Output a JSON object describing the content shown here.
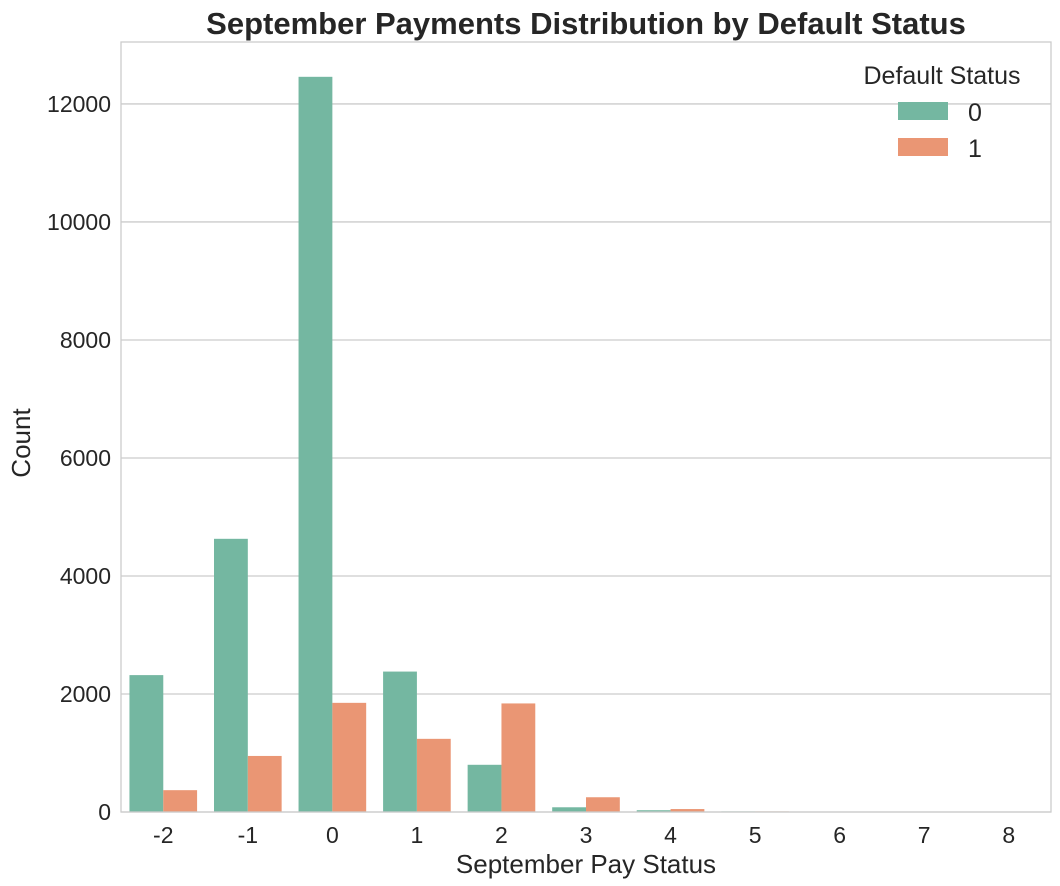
{
  "chart_data": {
    "type": "bar",
    "title": "September Payments Distribution by Default Status",
    "xlabel": "September Pay Status",
    "ylabel": "Count",
    "categories": [
      "-2",
      "-1",
      "0",
      "1",
      "2",
      "3",
      "4",
      "5",
      "6",
      "7",
      "8"
    ],
    "series": [
      {
        "name": "0",
        "color": "#74b7a1",
        "values": [
          2320,
          4630,
          12460,
          2380,
          800,
          80,
          30,
          10,
          5,
          7,
          8
        ]
      },
      {
        "name": "1",
        "color": "#ea9674",
        "values": [
          370,
          950,
          1850,
          1240,
          1840,
          250,
          50,
          10,
          5,
          3,
          3
        ]
      }
    ],
    "ylim": [
      0,
      13050
    ],
    "yticks": [
      0,
      2000,
      4000,
      6000,
      8000,
      10000,
      12000
    ],
    "grid": "y",
    "legend": {
      "title": "Default Status",
      "position": "top-right"
    }
  }
}
